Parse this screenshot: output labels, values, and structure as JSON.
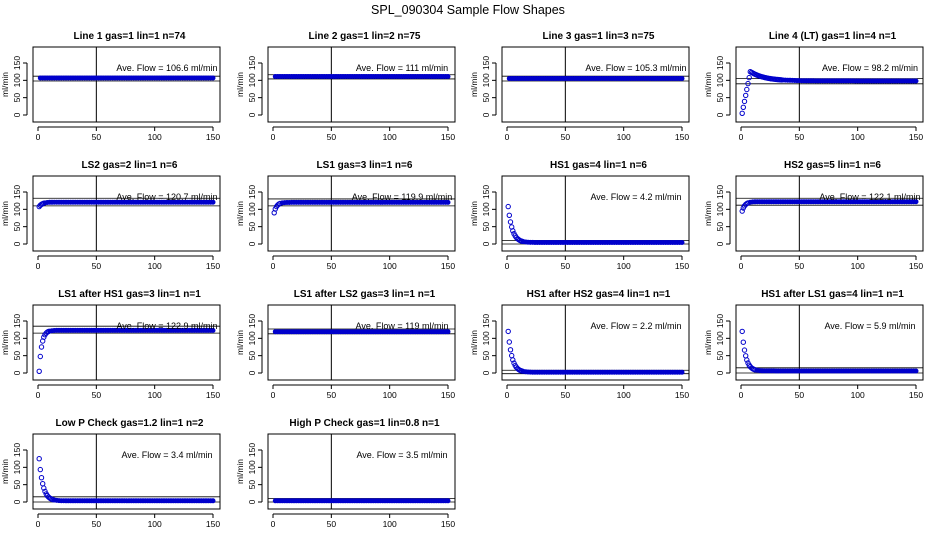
{
  "figure_title": "SPL_090304  Sample Flow Shapes",
  "chart_data": [
    {
      "type": "scatter",
      "title": "Line 1 gas=1 lin=1 n=74",
      "ylabel": "ml/min",
      "annotation": "Ave. Flow = 106.6  ml/min",
      "xlim": [
        0,
        150
      ],
      "ylim": [
        0,
        150
      ],
      "xticks": [
        "0",
        "50",
        "100",
        "150"
      ],
      "yticks": [
        "0",
        "50",
        "100",
        "150"
      ],
      "vline_x": 50,
      "hlines": [
        98,
        112
      ],
      "shape": {
        "kind": "flat",
        "value": 106.6
      }
    },
    {
      "type": "scatter",
      "title": "Line 2 gas=1 lin=2 n=75",
      "ylabel": "ml/min",
      "annotation": "Ave. Flow = 111  ml/min",
      "xlim": [
        0,
        150
      ],
      "ylim": [
        0,
        150
      ],
      "xticks": [
        "0",
        "50",
        "100",
        "150"
      ],
      "yticks": [
        "0",
        "50",
        "100",
        "150"
      ],
      "vline_x": 50,
      "hlines": [
        104,
        116
      ],
      "shape": {
        "kind": "flat",
        "value": 111
      }
    },
    {
      "type": "scatter",
      "title": "Line 3 gas=1 lin=3 n=75",
      "ylabel": "ml/min",
      "annotation": "Ave. Flow = 105.3  ml/min",
      "xlim": [
        0,
        150
      ],
      "ylim": [
        0,
        150
      ],
      "xticks": [
        "0",
        "50",
        "100",
        "150"
      ],
      "yticks": [
        "0",
        "50",
        "100",
        "150"
      ],
      "vline_x": 50,
      "hlines": [
        98,
        112
      ],
      "shape": {
        "kind": "flat",
        "value": 105.3
      }
    },
    {
      "type": "scatter",
      "title": "Line 4 (LT) gas=1 lin=4 n=1",
      "ylabel": "ml/min",
      "annotation": "Ave. Flow = 98.2  ml/min",
      "xlim": [
        0,
        150
      ],
      "ylim": [
        0,
        150
      ],
      "xticks": [
        "0",
        "50",
        "100",
        "150"
      ],
      "yticks": [
        "0",
        "50",
        "100",
        "150"
      ],
      "vline_x": 50,
      "hlines": [
        90,
        105
      ],
      "shape": {
        "kind": "overshoot",
        "start": 5,
        "peak": 125,
        "peak_x": 8,
        "value": 98.2
      }
    },
    {
      "type": "scatter",
      "title": "LS2 gas=2 lin=1 n=6",
      "ylabel": "ml/min",
      "annotation": "Ave. Flow = 120.7  ml/min",
      "xlim": [
        0,
        150
      ],
      "ylim": [
        0,
        150
      ],
      "xticks": [
        "0",
        "50",
        "100",
        "150"
      ],
      "yticks": [
        "0",
        "50",
        "100",
        "150"
      ],
      "vline_x": 50,
      "hlines": [
        110,
        132
      ],
      "shape": {
        "kind": "rise",
        "start": 108,
        "value": 120.7,
        "k": 0.35
      }
    },
    {
      "type": "scatter",
      "title": "LS1 gas=3 lin=1 n=6",
      "ylabel": "ml/min",
      "annotation": "Ave. Flow = 119.9  ml/min",
      "xlim": [
        0,
        150
      ],
      "ylim": [
        0,
        150
      ],
      "xticks": [
        "0",
        "50",
        "100",
        "150"
      ],
      "yticks": [
        "0",
        "50",
        "100",
        "150"
      ],
      "vline_x": 50,
      "hlines": [
        110,
        130
      ],
      "shape": {
        "kind": "rise",
        "start": 90,
        "value": 119.9,
        "k": 0.45
      }
    },
    {
      "type": "scatter",
      "title": "HS1 gas=4 lin=1 n=6",
      "ylabel": "ml/min",
      "annotation": "Ave. Flow = 4.2  ml/min",
      "xlim": [
        0,
        150
      ],
      "ylim": [
        0,
        150
      ],
      "xticks": [
        "0",
        "50",
        "100",
        "150"
      ],
      "yticks": [
        "0",
        "50",
        "100",
        "150"
      ],
      "vline_x": 50,
      "hlines": [
        0,
        10
      ],
      "shape": {
        "kind": "decay",
        "start": 108,
        "value": 4.2,
        "k": 0.28
      }
    },
    {
      "type": "scatter",
      "title": "HS2 gas=5 lin=1 n=6",
      "ylabel": "ml/min",
      "annotation": "Ave. Flow = 122.1  ml/min",
      "xlim": [
        0,
        150
      ],
      "ylim": [
        0,
        150
      ],
      "xticks": [
        "0",
        "50",
        "100",
        "150"
      ],
      "yticks": [
        "0",
        "50",
        "100",
        "150"
      ],
      "vline_x": 50,
      "hlines": [
        112,
        132
      ],
      "shape": {
        "kind": "rise",
        "start": 95,
        "value": 122.1,
        "k": 0.4
      }
    },
    {
      "type": "scatter",
      "title": "LS1 after HS1 gas=3 lin=1 n=1",
      "ylabel": "ml/min",
      "annotation": "Ave. Flow = 122.9  ml/min",
      "xlim": [
        0,
        150
      ],
      "ylim": [
        0,
        150
      ],
      "xticks": [
        "0",
        "50",
        "100",
        "150"
      ],
      "yticks": [
        "0",
        "50",
        "100",
        "150"
      ],
      "vline_x": 50,
      "hlines": [
        115,
        135
      ],
      "shape": {
        "kind": "rise",
        "start": 5,
        "value": 122.9,
        "k": 0.45
      }
    },
    {
      "type": "scatter",
      "title": "LS1 after LS2 gas=3 lin=1 n=1",
      "ylabel": "ml/min",
      "annotation": "Ave. Flow = 119  ml/min",
      "xlim": [
        0,
        150
      ],
      "ylim": [
        0,
        150
      ],
      "xticks": [
        "0",
        "50",
        "100",
        "150"
      ],
      "yticks": [
        "0",
        "50",
        "100",
        "150"
      ],
      "vline_x": 50,
      "hlines": [
        113,
        127
      ],
      "shape": {
        "kind": "flat",
        "value": 119
      }
    },
    {
      "type": "scatter",
      "title": "HS1 after HS2 gas=4 lin=1 n=1",
      "ylabel": "ml/min",
      "annotation": "Ave. Flow = 2.2  ml/min",
      "xlim": [
        0,
        150
      ],
      "ylim": [
        0,
        150
      ],
      "xticks": [
        "0",
        "50",
        "100",
        "150"
      ],
      "yticks": [
        "0",
        "50",
        "100",
        "150"
      ],
      "vline_x": 50,
      "hlines": [
        -2,
        8
      ],
      "shape": {
        "kind": "decay",
        "start": 120,
        "value": 2.2,
        "k": 0.3
      }
    },
    {
      "type": "scatter",
      "title": "HS1 after LS1 gas=4 lin=1 n=1",
      "ylabel": "ml/min",
      "annotation": "Ave. Flow = 5.9  ml/min",
      "xlim": [
        0,
        150
      ],
      "ylim": [
        0,
        150
      ],
      "xticks": [
        "0",
        "50",
        "100",
        "150"
      ],
      "yticks": [
        "0",
        "50",
        "100",
        "150"
      ],
      "vline_x": 50,
      "hlines": [
        0,
        15
      ],
      "shape": {
        "kind": "decay",
        "start": 120,
        "value": 5.9,
        "k": 0.32
      }
    },
    {
      "type": "scatter",
      "title": "Low P Check gas=1.2 lin=1 n=2",
      "ylabel": "ml/min",
      "annotation": "Ave. Flow = 3.4  ml/min",
      "xlim": [
        0,
        150
      ],
      "ylim": [
        0,
        150
      ],
      "xticks": [
        "0",
        "50",
        "100",
        "150"
      ],
      "yticks": [
        "0",
        "50",
        "100",
        "150"
      ],
      "vline_x": 50,
      "hlines": [
        0,
        15
      ],
      "shape": {
        "kind": "decay",
        "start": 125,
        "value": 3.4,
        "k": 0.3
      }
    },
    {
      "type": "scatter",
      "title": "High P Check gas=1 lin=0.8 n=1",
      "ylabel": "ml/min",
      "annotation": "Ave. Flow = 3.5  ml/min",
      "xlim": [
        0,
        150
      ],
      "ylim": [
        0,
        150
      ],
      "xticks": [
        "0",
        "50",
        "100",
        "150"
      ],
      "yticks": [
        "0",
        "50",
        "100",
        "150"
      ],
      "vline_x": 50,
      "hlines": [
        0,
        10
      ],
      "shape": {
        "kind": "flat",
        "value": 3.5
      }
    }
  ],
  "colors": {
    "points": "#0000cc",
    "axis": "#000000",
    "background": "#ffffff"
  }
}
